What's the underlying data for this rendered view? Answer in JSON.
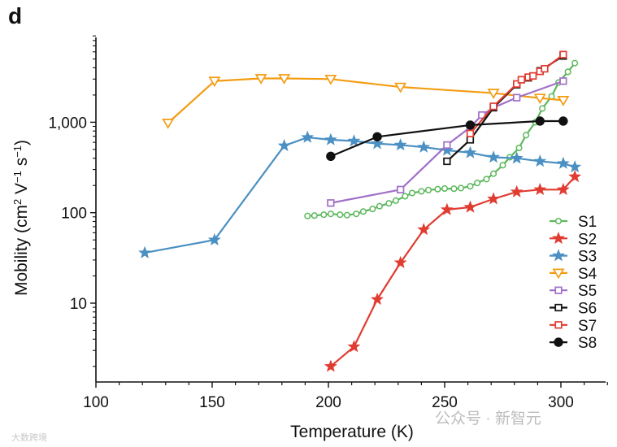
{
  "panel_label": "d",
  "watermark": {
    "text": "公众号 · 新智元",
    "corner_text": "大数跨境"
  },
  "chart_data": {
    "type": "line",
    "title": "",
    "xlabel": "Temperature (K)",
    "ylabel_parts": {
      "main": "Mobility (cm",
      "sup1": "2",
      "mid": " V",
      "sup2": "−1",
      "mid2": " s",
      "sup3": "−1",
      "end": ")"
    },
    "xscale": "linear",
    "yscale": "log",
    "xlim": [
      100,
      325
    ],
    "ylim": [
      1.3,
      9000
    ],
    "xticks": [
      100,
      150,
      200,
      250,
      300
    ],
    "xtick_labels": [
      "100",
      "150",
      "200",
      "250",
      "300"
    ],
    "yticks": [
      10,
      100,
      1000
    ],
    "ytick_labels": [
      "10",
      "100",
      "1,000"
    ],
    "legend_position": "lower-right",
    "series": [
      {
        "name": "S1",
        "color": "#5cb85c",
        "marker": "circle-open",
        "x": [
          191,
          194,
          198,
          201,
          205,
          208,
          212,
          215,
          219,
          222,
          226,
          229,
          233,
          236,
          240,
          243,
          247,
          250,
          254,
          257,
          261,
          264,
          268,
          271,
          275,
          278,
          282,
          285,
          289,
          292,
          296,
          299,
          303,
          306
        ],
        "y": [
          92,
          93,
          95,
          97,
          95,
          94,
          97,
          103,
          110,
          118,
          127,
          136,
          152,
          165,
          172,
          178,
          182,
          185,
          184,
          187,
          196,
          213,
          235,
          270,
          335,
          410,
          520,
          720,
          1000,
          1420,
          1930,
          2750,
          3600,
          4500
        ]
      },
      {
        "name": "S2",
        "color": "#e03c31",
        "marker": "star",
        "x": [
          201,
          211,
          221,
          231,
          241,
          251,
          261,
          271,
          281,
          291,
          301,
          306
        ],
        "y": [
          2,
          3.3,
          11,
          28,
          65,
          108,
          115,
          142,
          170,
          180,
          180,
          250
        ]
      },
      {
        "name": "S3",
        "color": "#4a90c2",
        "marker": "star",
        "x": [
          121,
          151,
          181,
          191,
          201,
          211,
          221,
          231,
          241,
          251,
          261,
          271,
          281,
          291,
          301,
          306
        ],
        "y": [
          36,
          50,
          550,
          680,
          640,
          620,
          580,
          560,
          530,
          490,
          460,
          410,
          400,
          370,
          350,
          320
        ]
      },
      {
        "name": "S4",
        "color": "#f39c12",
        "marker": "triangle-down-open",
        "x": [
          131,
          151,
          171,
          181,
          201,
          231,
          271,
          291,
          301
        ],
        "y": [
          980,
          2850,
          3050,
          3050,
          3000,
          2450,
          2100,
          1850,
          1750
        ]
      },
      {
        "name": "S5",
        "color": "#a070c8",
        "marker": "square-open",
        "x": [
          201,
          231,
          251,
          261,
          266,
          271,
          281,
          301
        ],
        "y": [
          128,
          180,
          560,
          880,
          1200,
          1450,
          1870,
          2850
        ]
      },
      {
        "name": "S6",
        "color": "#111111",
        "marker": "square-open",
        "x": [
          251,
          261,
          271,
          281,
          286,
          291,
          301
        ],
        "y": [
          370,
          640,
          1450,
          2600,
          3100,
          3700,
          5400
        ]
      },
      {
        "name": "S7",
        "color": "#e03c31",
        "marker": "square-open",
        "x": [
          261,
          271,
          281,
          283,
          286,
          288,
          291,
          293,
          301
        ],
        "y": [
          750,
          1500,
          2650,
          2950,
          3150,
          3250,
          3650,
          3900,
          5600
        ]
      },
      {
        "name": "S8",
        "color": "#111111",
        "marker": "circle-filled",
        "x": [
          201,
          221,
          261,
          291,
          301
        ],
        "y": [
          420,
          690,
          930,
          1030,
          1030
        ]
      }
    ]
  }
}
